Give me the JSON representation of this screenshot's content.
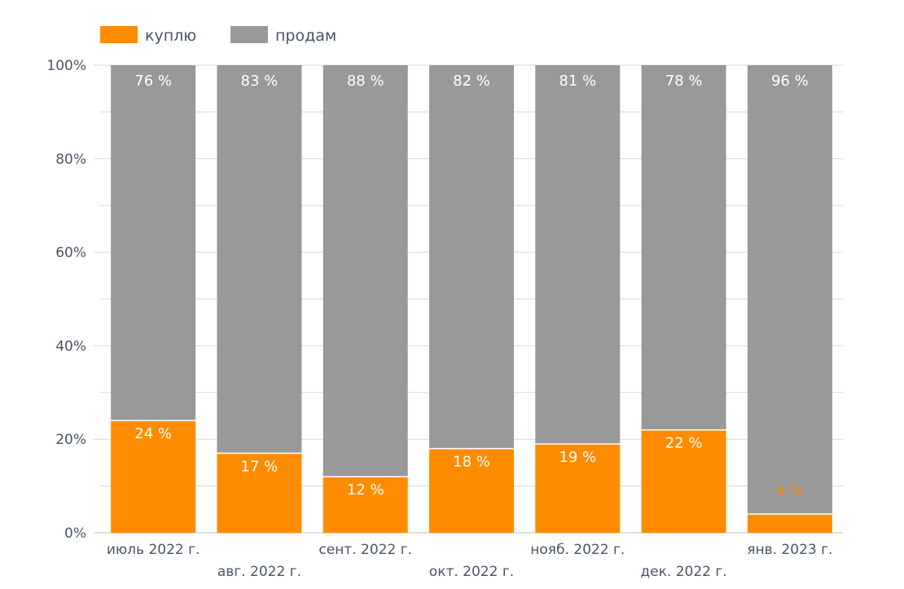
{
  "chart_data": {
    "type": "bar",
    "stacked": true,
    "categories": [
      "июль 2022 г.",
      "авг. 2022 г.",
      "сент. 2022 г.",
      "окт. 2022 г.",
      "нояб. 2022 г.",
      "дек. 2022 г.",
      "янв. 2023 г."
    ],
    "series": [
      {
        "name": "куплю",
        "color": "#ff8c00",
        "values": [
          24,
          17,
          12,
          18,
          19,
          22,
          4
        ],
        "labels": [
          "24 %",
          "17 %",
          "12 %",
          "18 %",
          "19 %",
          "22 %",
          "4 %"
        ]
      },
      {
        "name": "продам",
        "color": "#999999",
        "values": [
          76,
          83,
          88,
          82,
          81,
          78,
          96
        ],
        "labels": [
          "76 %",
          "83 %",
          "88 %",
          "82 %",
          "81 %",
          "78 %",
          "96 %"
        ]
      }
    ],
    "y_ticks": [
      "0%",
      "20%",
      "40%",
      "60%",
      "80%",
      "100%"
    ],
    "ylim": [
      0,
      100
    ],
    "grid": true,
    "legend_position": "top-left"
  }
}
